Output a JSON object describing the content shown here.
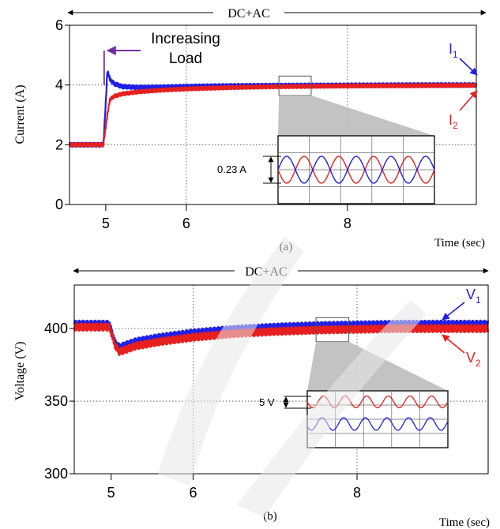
{
  "chart_data": [
    {
      "type": "line",
      "panel_label": "(a)",
      "span_label": "DC+AC",
      "xlabel": "Time (sec)",
      "ylabel": "Current (A)",
      "xlim": [
        4.55,
        9.6
      ],
      "ylim": [
        0,
        6
      ],
      "x_ticks": [
        5,
        6,
        8
      ],
      "x_tick_labels": [
        "5",
        "6",
        "8"
      ],
      "y_ticks": [
        0,
        2,
        4,
        6
      ],
      "y_tick_labels": [
        "0",
        "2",
        "4",
        "6"
      ],
      "grid": true,
      "series": [
        {
          "name": "I1",
          "label_main": "I",
          "label_sub": "1",
          "color": "#1f1fe6",
          "x": [
            4.55,
            4.95,
            4.97,
            5.0,
            5.02,
            5.05,
            5.1,
            5.2,
            5.4,
            5.7,
            6.0,
            6.5,
            7.0,
            8.0,
            9.0,
            9.6
          ],
          "y": [
            2.0,
            2.0,
            2.0,
            3.4,
            4.5,
            4.2,
            4.05,
            3.95,
            3.92,
            3.93,
            3.95,
            3.97,
            3.98,
            3.99,
            4.0,
            4.0
          ],
          "ripple": 0.07
        },
        {
          "name": "I2",
          "label_main": "I",
          "label_sub": "2",
          "color": "#e61f1f",
          "x": [
            4.55,
            4.97,
            5.02,
            5.05,
            5.1,
            5.2,
            5.4,
            5.7,
            6.0,
            6.5,
            7.0,
            8.0,
            9.0,
            9.6
          ],
          "y": [
            2.0,
            2.0,
            3.0,
            3.5,
            3.62,
            3.7,
            3.77,
            3.83,
            3.87,
            3.91,
            3.94,
            3.97,
            3.98,
            3.99
          ],
          "ripple": 0.06
        }
      ],
      "annotations": {
        "event_line1": "Increasing",
        "event_line2": "Load",
        "event_color": "#7030a0",
        "event_x": 4.98,
        "event_y": 5.15,
        "zoom_window": {
          "x": [
            7.15,
            7.55
          ],
          "y": [
            3.65,
            4.3
          ]
        },
        "inset_label": "0.23 A"
      }
    },
    {
      "type": "line",
      "panel_label": "(b)",
      "span_label": "DC+AC",
      "xlabel": "Time (sec)",
      "ylabel": "Voltage (V)",
      "xlim": [
        4.55,
        9.6
      ],
      "ylim": [
        300,
        430
      ],
      "x_ticks": [
        5,
        6,
        8
      ],
      "x_tick_labels": [
        "5",
        "6",
        "8"
      ],
      "y_ticks": [
        300,
        350,
        400
      ],
      "y_tick_labels": [
        "300",
        "350",
        "400"
      ],
      "grid": true,
      "series": [
        {
          "name": "V1",
          "label_main": "V",
          "label_sub": "1",
          "color": "#1f1fe6",
          "x": [
            4.55,
            4.98,
            5.05,
            5.1,
            5.3,
            5.6,
            6.0,
            6.5,
            7.0,
            7.5,
            8.0,
            8.5,
            9.0,
            9.6
          ],
          "y": [
            403.0,
            403.0,
            390.0,
            387.0,
            391.0,
            394.0,
            397.0,
            399.5,
            401.0,
            402.0,
            402.5,
            403.0,
            403.0,
            403.0
          ],
          "ripple": 2.6
        },
        {
          "name": "V2",
          "label_main": "V",
          "label_sub": "2",
          "color": "#e61f1f",
          "x": [
            4.55,
            4.98,
            5.05,
            5.1,
            5.3,
            5.6,
            6.0,
            6.5,
            7.0,
            7.5,
            8.0,
            8.5,
            9.0,
            9.6
          ],
          "y": [
            401.0,
            401.0,
            388.0,
            384.0,
            388.0,
            391.0,
            394.0,
            396.5,
            398.0,
            399.0,
            399.5,
            400.0,
            400.0,
            400.0
          ],
          "ripple": 2.6
        }
      ],
      "annotations": {
        "zoom_window": {
          "x": [
            7.5,
            7.9
          ],
          "y": [
            391.0,
            407.5
          ]
        },
        "inset_label": "5 V"
      }
    }
  ]
}
